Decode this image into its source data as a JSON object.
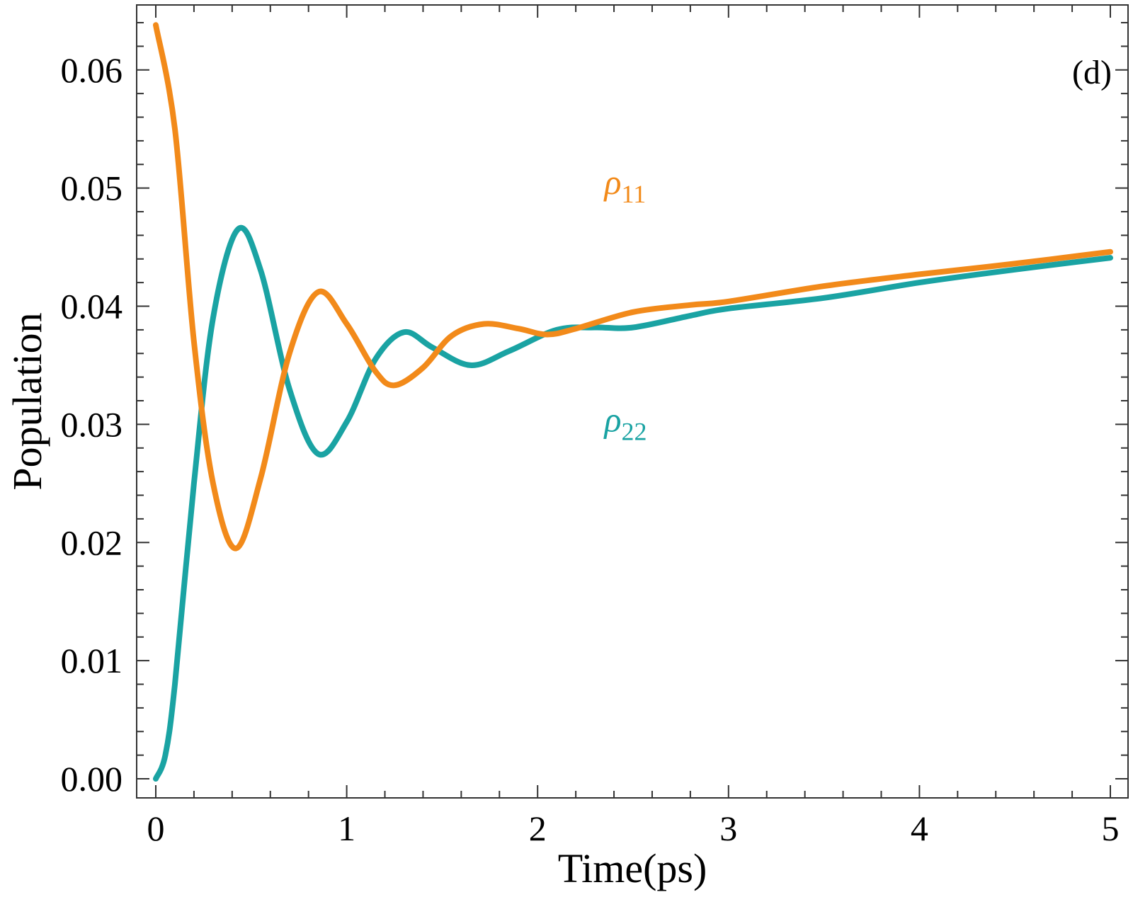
{
  "chart_data": {
    "type": "line",
    "title": "",
    "panel_label": "(d)",
    "xlabel": "Time(ps)",
    "ylabel": "Population",
    "xlim": [
      0,
      5
    ],
    "ylim": [
      0,
      0.064
    ],
    "xticks": [
      0,
      1,
      2,
      3,
      4,
      5
    ],
    "xtick_labels": [
      "0",
      "1",
      "2",
      "3",
      "4",
      "5"
    ],
    "yticks": [
      0,
      0.01,
      0.02,
      0.03,
      0.04,
      0.05,
      0.06
    ],
    "ytick_labels": [
      "0.00",
      "0.01",
      "0.02",
      "0.03",
      "0.04",
      "0.05",
      "0.06"
    ],
    "grid": false,
    "series": [
      {
        "name": "ρ11",
        "label_symbol": "ρ",
        "label_subscript": "11",
        "color": "#f28a1a",
        "x": [
          0,
          0.1,
          0.2,
          0.3,
          0.42,
          0.55,
          0.7,
          0.85,
          1.0,
          1.15,
          1.25,
          1.4,
          1.55,
          1.72,
          1.9,
          2.05,
          2.2,
          2.5,
          2.8,
          3.0,
          3.5,
          4.0,
          4.5,
          5.0
        ],
        "y": [
          0.0638,
          0.055,
          0.037,
          0.025,
          0.0195,
          0.0255,
          0.036,
          0.0412,
          0.0385,
          0.0345,
          0.0333,
          0.0348,
          0.0375,
          0.0385,
          0.0381,
          0.0376,
          0.0381,
          0.0395,
          0.0401,
          0.0404,
          0.0417,
          0.0427,
          0.0436,
          0.0446
        ]
      },
      {
        "name": "ρ22",
        "label_symbol": "ρ",
        "label_subscript": "22",
        "color": "#1aa3a3",
        "x": [
          0,
          0.05,
          0.1,
          0.2,
          0.3,
          0.43,
          0.55,
          0.7,
          0.85,
          1.0,
          1.15,
          1.3,
          1.45,
          1.65,
          1.85,
          2.1,
          2.3,
          2.5,
          2.8,
          3.0,
          3.5,
          4.0,
          4.5,
          5.0
        ],
        "y": [
          0.0,
          0.002,
          0.008,
          0.025,
          0.039,
          0.0465,
          0.043,
          0.033,
          0.0275,
          0.0302,
          0.0355,
          0.0378,
          0.0365,
          0.035,
          0.0362,
          0.038,
          0.0382,
          0.0382,
          0.0392,
          0.0398,
          0.0407,
          0.042,
          0.0431,
          0.0441
        ]
      }
    ]
  }
}
